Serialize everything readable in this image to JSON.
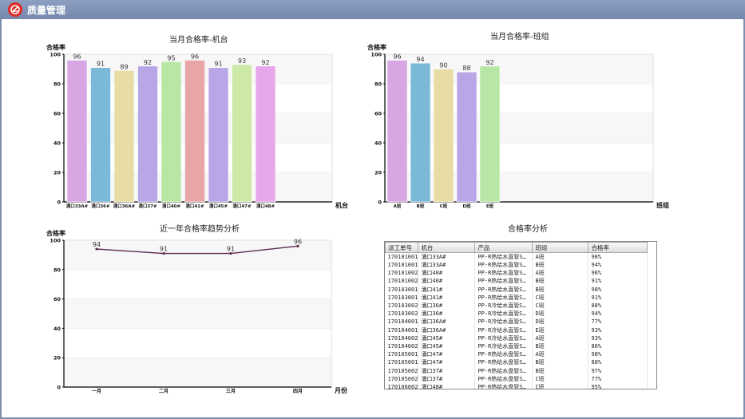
{
  "app": {
    "title": "质量管理"
  },
  "colors": {
    "titlebar": "#7d8fb0",
    "line": "#5b2a4e"
  },
  "charts": {
    "machine": {
      "title": "当月合格率-机台"
    },
    "team": {
      "title": "当月合格率-班组"
    },
    "trend": {
      "title": "近一年合格率趋势分析"
    },
    "table": {
      "title": "合格率分析"
    }
  },
  "chart_data": [
    {
      "type": "bar",
      "title": "当月合格率-机台",
      "ylabel": "合格率",
      "xlabel": "机台",
      "ylim": [
        0,
        100
      ],
      "yticks": [
        0,
        20,
        40,
        60,
        80,
        100
      ],
      "categories": [
        "涌口33A#",
        "涌口36#",
        "涌口36A#",
        "涌口37#",
        "涌口40#",
        "涌口41#",
        "涌口45#",
        "涌口47#",
        "涌口48#"
      ],
      "values": [
        96,
        91,
        89,
        92,
        95,
        96,
        91,
        93,
        92
      ],
      "colors": [
        "#d9a6e4",
        "#7ab9d8",
        "#e6dca4",
        "#b9a6e6",
        "#b8e6a4",
        "#e8a6a6",
        "#b9a6e6",
        "#cde9a8",
        "#e6a6ea"
      ],
      "grid": true
    },
    {
      "type": "bar",
      "title": "当月合格率-班组",
      "ylabel": "合格率",
      "xlabel": "班组",
      "ylim": [
        0,
        100
      ],
      "yticks": [
        0,
        20,
        40,
        60,
        80,
        100
      ],
      "categories": [
        "A班",
        "B班",
        "C班",
        "D班",
        "E班"
      ],
      "values": [
        96,
        94,
        90,
        88,
        92
      ],
      "colors": [
        "#d9a6e4",
        "#7ab9d8",
        "#e6dca4",
        "#b9a6e6",
        "#b8e6a4"
      ],
      "grid": true
    },
    {
      "type": "line",
      "title": "近一年合格率趋势分析",
      "ylabel": "合格率",
      "xlabel": "月份",
      "ylim": [
        0,
        100
      ],
      "yticks": [
        0,
        20,
        40,
        60,
        80,
        100
      ],
      "categories": [
        "一月",
        "二月",
        "三月",
        "四月"
      ],
      "values": [
        94,
        91,
        91,
        96
      ],
      "grid": true
    },
    {
      "type": "table",
      "title": "合格率分析",
      "columns": [
        "派工单号",
        "机台",
        "产品",
        "班组",
        "合格率"
      ],
      "rows": [
        [
          "170101001",
          "涌口33A#",
          "PP-R热给水直管S…",
          "A班",
          "98%"
        ],
        [
          "170101001",
          "涌口33A#",
          "PP-R热给水直管S…",
          "B班",
          "94%"
        ],
        [
          "170101002",
          "涌口40#",
          "PP-R热给水直管S…",
          "A班",
          "96%"
        ],
        [
          "170101002",
          "涌口40#",
          "PP-R热给水直管S…",
          "B班",
          "91%"
        ],
        [
          "170103001",
          "涌口41#",
          "PP-R热给水直管S…",
          "B班",
          "98%"
        ],
        [
          "170103001",
          "涌口41#",
          "PP-R热给水直管S…",
          "C班",
          "91%"
        ],
        [
          "170103002",
          "涌口36#",
          "PP-R冷给水直管S…",
          "C班",
          "88%"
        ],
        [
          "170103002",
          "涌口36#",
          "PP-R冷给水直管S…",
          "D班",
          "94%"
        ],
        [
          "170104001",
          "涌口36A#",
          "PP-R冷给水直管S…",
          "D班",
          "77%"
        ],
        [
          "170104001",
          "涌口36A#",
          "PP-R冷给水直管S…",
          "E班",
          "93%"
        ],
        [
          "170104002",
          "涌口45#",
          "PP-R冷给水直管S…",
          "A班",
          "93%"
        ],
        [
          "170104002",
          "涌口45#",
          "PP-R冷给水直管S…",
          "B班",
          "86%"
        ],
        [
          "170105001",
          "涌口47#",
          "PP-R热给水盘管S…",
          "A班",
          "98%"
        ],
        [
          "170105001",
          "涌口47#",
          "PP-R热给水盘管S…",
          "B班",
          "88%"
        ],
        [
          "170105002",
          "涌口37#",
          "PP-R热给水盘管S…",
          "B班",
          "97%"
        ],
        [
          "170105002",
          "涌口37#",
          "PP-R热给水盘管S…",
          "C班",
          "77%"
        ],
        [
          "170106002",
          "涌口48#",
          "PP-R热给水盘管S…",
          "C班",
          "95%"
        ]
      ]
    }
  ]
}
